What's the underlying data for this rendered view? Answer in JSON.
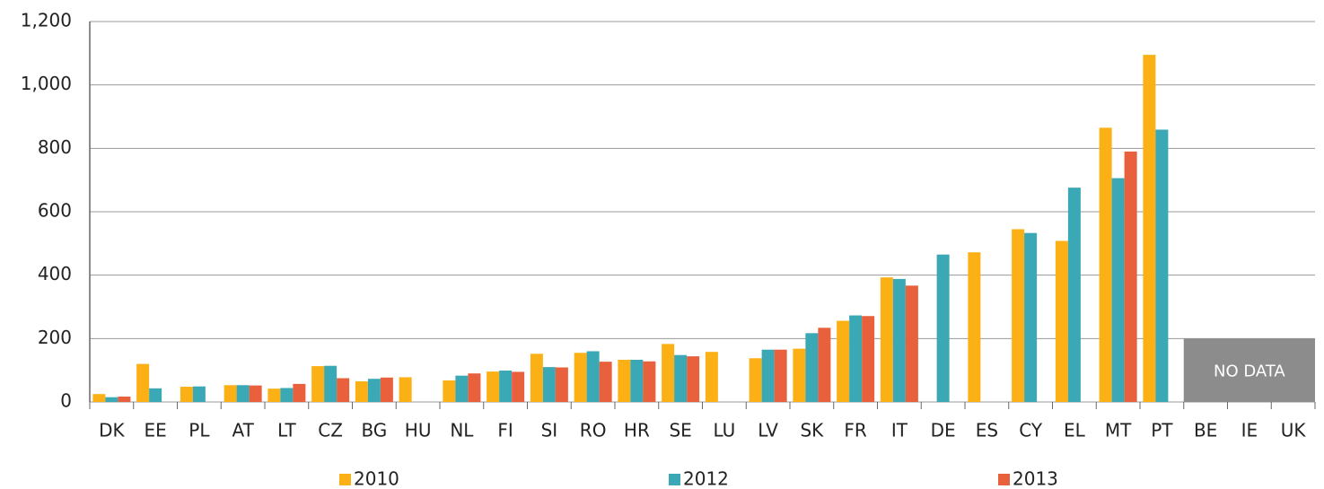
{
  "chart_data": {
    "type": "bar",
    "categories": [
      "DK",
      "EE",
      "PL",
      "AT",
      "LT",
      "CZ",
      "BG",
      "HU",
      "NL",
      "FI",
      "SI",
      "RO",
      "HR",
      "SE",
      "LU",
      "LV",
      "SK",
      "FR",
      "IT",
      "DE",
      "ES",
      "CY",
      "EL",
      "MT",
      "PT",
      "BE",
      "IE",
      "UK"
    ],
    "series": [
      {
        "name": "2010",
        "color": "#fbb116",
        "values": [
          25,
          120,
          48,
          53,
          42,
          113,
          65,
          78,
          68,
          96,
          152,
          155,
          133,
          183,
          158,
          138,
          168,
          256,
          393,
          null,
          472,
          545,
          508,
          865,
          1095,
          null,
          null,
          null
        ]
      },
      {
        "name": "2012",
        "color": "#3aa8b5",
        "values": [
          15,
          43,
          49,
          53,
          44,
          114,
          73,
          null,
          83,
          99,
          110,
          160,
          133,
          148,
          null,
          165,
          217,
          273,
          388,
          465,
          null,
          533,
          676,
          706,
          859,
          null,
          null,
          null
        ]
      },
      {
        "name": "2013",
        "color": "#e8603c",
        "values": [
          17,
          null,
          null,
          52,
          57,
          75,
          77,
          null,
          90,
          95,
          109,
          127,
          128,
          144,
          null,
          165,
          234,
          271,
          367,
          null,
          null,
          null,
          null,
          790,
          null,
          null,
          null,
          null
        ]
      }
    ],
    "ylim": [
      0,
      1200
    ],
    "yticks": [
      0,
      200,
      400,
      600,
      800,
      {
        "value": 1000,
        "label": "1,000"
      },
      {
        "value": 1200,
        "label": "1,200"
      }
    ],
    "grid": true,
    "legend": "bottom",
    "no_data": {
      "label": "NO DATA",
      "from": "BE",
      "to": "UK",
      "height": 200,
      "color": "#8c8c8c"
    }
  }
}
